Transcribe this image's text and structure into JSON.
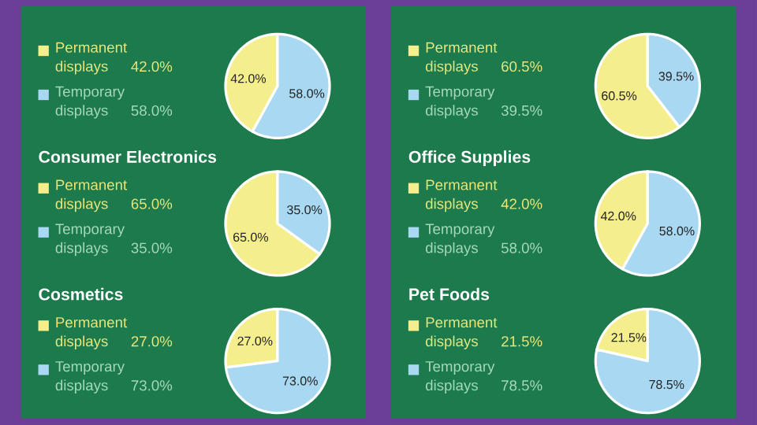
{
  "chart_data": [
    {
      "type": "pie",
      "categories": [
        "Permanent displays",
        "Temporary displays"
      ],
      "values": [
        42.0,
        58.0
      ],
      "value_labels": [
        "42.0%",
        "58.0%"
      ],
      "colors": [
        "#f5ee8c",
        "#a8d8f2"
      ],
      "legend": "left"
    },
    {
      "type": "pie",
      "categories": [
        "Permanent displays",
        "Temporary displays"
      ],
      "values": [
        60.5,
        39.5
      ],
      "value_labels": [
        "60.5%",
        "39.5%"
      ],
      "colors": [
        "#f5ee8c",
        "#a8d8f2"
      ],
      "legend": "left"
    },
    {
      "type": "pie",
      "title": "Consumer Electronics",
      "categories": [
        "Permanent displays",
        "Temporary displays"
      ],
      "values": [
        65.0,
        35.0
      ],
      "value_labels": [
        "65.0%",
        "35.0%"
      ],
      "colors": [
        "#f5ee8c",
        "#a8d8f2"
      ],
      "legend": "left"
    },
    {
      "type": "pie",
      "title": "Office Supplies",
      "categories": [
        "Permanent displays",
        "Temporary displays"
      ],
      "values": [
        42.0,
        58.0
      ],
      "value_labels": [
        "42.0%",
        "58.0%"
      ],
      "colors": [
        "#f5ee8c",
        "#a8d8f2"
      ],
      "legend": "left"
    },
    {
      "type": "pie",
      "title": "Cosmetics",
      "categories": [
        "Permanent displays",
        "Temporary displays"
      ],
      "values": [
        27.0,
        73.0
      ],
      "value_labels": [
        "27.0%",
        "73.0%"
      ],
      "colors": [
        "#f5ee8c",
        "#a8d8f2"
      ],
      "legend": "left"
    },
    {
      "type": "pie",
      "title": "Pet Foods",
      "categories": [
        "Permanent displays",
        "Temporary displays"
      ],
      "values": [
        21.5,
        78.5
      ],
      "value_labels": [
        "21.5%",
        "78.5%"
      ],
      "colors": [
        "#f5ee8c",
        "#a8d8f2"
      ],
      "legend": "left"
    }
  ]
}
